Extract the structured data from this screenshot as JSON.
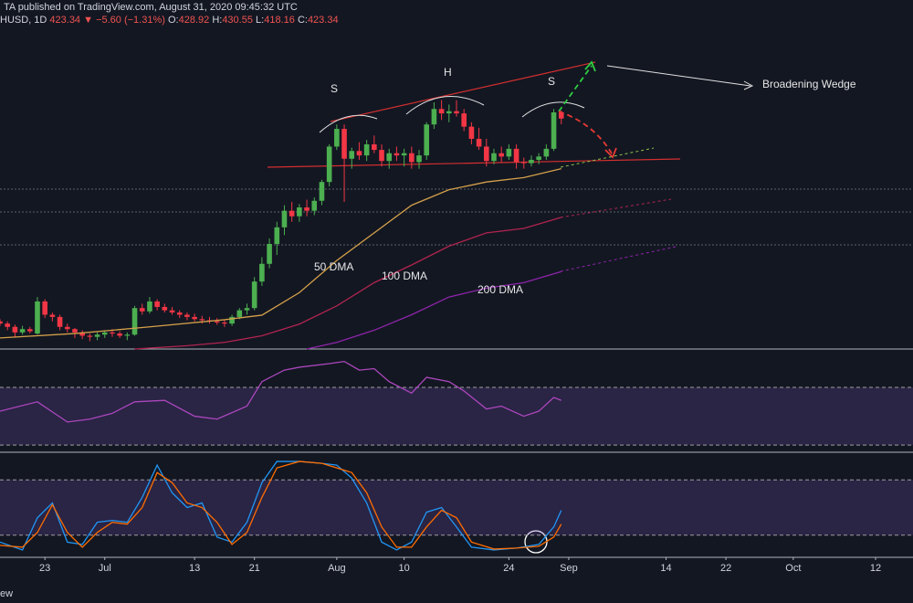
{
  "header": {
    "title": "TA published on TradingView.com, August 31, 2020 09:45:32 UTC",
    "symbol": "HUSD, 1D",
    "price": "423.34",
    "change": "▼ −5.60 (−1.31%)",
    "open_label": "O:",
    "open": "428.92",
    "high_label": "H:",
    "high": "430.55",
    "low_label": "L:",
    "low": "418.16",
    "close_label": "C:",
    "close": "423.34"
  },
  "footer": "ew",
  "chart_data": [
    {
      "type": "candlestick",
      "xlim": [
        0,
        122
      ],
      "ylim": [
        215,
        514
      ],
      "up_color": "#4caf50",
      "down_color": "#f23645",
      "x": [
        0,
        1,
        2,
        3,
        4,
        5,
        6,
        7,
        8,
        9,
        10,
        11,
        12,
        13,
        14,
        15,
        16,
        17,
        18,
        19,
        20,
        21,
        22,
        23,
        24,
        25,
        26,
        27,
        28,
        29,
        30,
        31,
        32,
        33,
        34,
        35,
        36,
        37,
        38,
        39,
        40,
        41,
        42,
        43,
        44,
        45,
        46,
        47,
        48,
        49,
        50,
        51,
        52,
        53,
        54,
        55,
        56,
        57,
        58,
        59,
        60,
        61,
        62,
        63,
        64,
        65,
        66,
        67,
        68,
        69,
        70,
        71,
        72,
        73,
        74,
        75
      ],
      "open": [
        240,
        238,
        235,
        230,
        233,
        229,
        258,
        246,
        244,
        235,
        233,
        230,
        227,
        226,
        228,
        230,
        229,
        227,
        228,
        252,
        249,
        258,
        253,
        250,
        248,
        246,
        244,
        242,
        241,
        240,
        239,
        238,
        244,
        250,
        252,
        276,
        292,
        310,
        325,
        340,
        335,
        343,
        340,
        349,
        366,
        398,
        414,
        387,
        394,
        390,
        400,
        395,
        385,
        392,
        390,
        392,
        384,
        390,
        418,
        432,
        428,
        430,
        428,
        416,
        405,
        398,
        385,
        392,
        389,
        396,
        384,
        383,
        386,
        389,
        396,
        428.92
      ],
      "high": [
        242,
        240,
        237,
        236,
        235,
        262,
        260,
        248,
        246,
        238,
        234,
        232,
        229,
        230,
        232,
        233,
        231,
        230,
        254,
        256,
        262,
        260,
        256,
        253,
        250,
        248,
        247,
        245,
        244,
        243,
        241,
        246,
        252,
        256,
        280,
        298,
        315,
        330,
        345,
        348,
        346,
        350,
        352,
        368,
        400,
        418,
        418,
        397,
        402,
        404,
        408,
        400,
        396,
        398,
        396,
        398,
        395,
        420,
        438,
        440,
        436,
        440,
        432,
        420,
        415,
        405,
        396,
        398,
        400,
        400,
        388,
        390,
        392,
        400,
        432,
        430.55
      ],
      "low": [
        236,
        232,
        226,
        228,
        229,
        228,
        243,
        240,
        232,
        230,
        225,
        224,
        222,
        223,
        225,
        226,
        225,
        223,
        227,
        246,
        247,
        250,
        248,
        246,
        243,
        241,
        240,
        238,
        238,
        237,
        235,
        236,
        242,
        246,
        250,
        272,
        288,
        300,
        318,
        330,
        330,
        335,
        336,
        345,
        362,
        395,
        348,
        378,
        386,
        385,
        392,
        380,
        378,
        385,
        380,
        378,
        378,
        386,
        414,
        422,
        420,
        425,
        412,
        400,
        395,
        380,
        382,
        384,
        386,
        378,
        378,
        380,
        382,
        386,
        394,
        418.16
      ],
      "close": [
        238,
        235,
        230,
        233,
        231,
        258,
        246,
        244,
        235,
        233,
        230,
        227,
        226,
        228,
        230,
        229,
        227,
        228,
        252,
        249,
        258,
        253,
        250,
        248,
        246,
        244,
        242,
        241,
        240,
        239,
        238,
        244,
        250,
        252,
        276,
        292,
        310,
        325,
        340,
        335,
        343,
        340,
        349,
        366,
        398,
        414,
        387,
        394,
        390,
        400,
        395,
        385,
        392,
        390,
        392,
        384,
        390,
        418,
        432,
        428,
        430,
        428,
        416,
        405,
        398,
        385,
        392,
        389,
        396,
        384,
        383,
        386,
        389,
        396,
        428.92,
        423.34
      ],
      "series": [
        {
          "name": "50 DMA",
          "color": "#d4a04a",
          "x": [
            0,
            10,
            20,
            30,
            35,
            40,
            45,
            50,
            55,
            60,
            65,
            70,
            75
          ],
          "values": [
            225,
            229,
            235,
            241.5,
            245.6,
            266,
            295,
            320,
            345,
            359,
            366,
            370,
            378
          ]
        },
        {
          "name": "100 DMA",
          "color": "#b0244f",
          "x": [
            18,
            25,
            30,
            35,
            40,
            45,
            50,
            55,
            60,
            65,
            70,
            75
          ],
          "values": [
            215,
            218,
            221,
            227,
            237.5,
            254,
            275,
            291,
            308,
            320,
            324,
            334
          ]
        },
        {
          "name": "200 DMA",
          "color": "#8e24aa",
          "x": [
            41,
            45,
            50,
            55,
            60,
            65,
            70,
            75
          ],
          "values": [
            215,
            221,
            232,
            246,
            262,
            270,
            275,
            285
          ]
        }
      ],
      "annotations": [
        {
          "text": "S"
        },
        {
          "text": "H"
        },
        {
          "text": "S"
        },
        {
          "text": "Broadening Wedge"
        }
      ]
    },
    {
      "type": "line",
      "xlim": [
        0,
        122
      ],
      "ylim": [
        25,
        96
      ],
      "bands": {
        "lower": 30,
        "upper": 70
      },
      "band_color": "#7e57c2",
      "series": [
        {
          "color": "#ab47bc",
          "x": [
            0,
            5,
            9,
            12,
            15,
            18,
            22,
            26,
            29,
            33,
            35,
            38,
            40,
            44,
            46,
            48,
            50,
            52,
            55,
            57,
            60,
            62,
            65,
            67,
            70,
            72,
            74,
            75
          ],
          "values": [
            53.5,
            60,
            46,
            48,
            52,
            60,
            61,
            50,
            48,
            57,
            74,
            82,
            84,
            86.5,
            88,
            82,
            83,
            74,
            66,
            77,
            74,
            67.5,
            55,
            57,
            50,
            53.5,
            63,
            61
          ]
        }
      ]
    },
    {
      "type": "line",
      "xlim": [
        0,
        122
      ],
      "ylim": [
        -4,
        109
      ],
      "bands": {
        "lower": 20,
        "upper": 80
      },
      "band_color": "#7e57c2",
      "x": [
        0,
        3,
        5,
        7,
        9,
        11,
        13,
        15,
        17,
        19,
        21,
        23,
        25,
        27,
        29,
        31,
        33,
        35,
        37,
        40,
        43,
        45,
        47,
        49,
        51,
        53,
        55,
        57,
        59,
        61,
        63,
        66,
        69,
        72,
        74,
        75
      ],
      "series": [
        {
          "color": "#2196f3",
          "values": [
            12.5,
            4,
            39,
            55,
            12.5,
            10,
            34,
            36,
            34,
            61,
            96,
            66,
            50,
            55,
            18,
            12.5,
            34,
            77,
            100,
            100,
            98,
            96,
            82,
            55,
            12.5,
            4,
            12.5,
            45,
            50,
            29,
            7,
            4,
            6,
            10,
            29,
            47
          ]
        },
        {
          "color": "#ff6d00",
          "values": [
            9,
            7,
            23,
            53,
            23,
            7,
            23,
            34,
            32,
            50,
            88,
            77,
            55,
            50,
            34,
            10,
            23,
            61,
            93,
            100,
            98,
            93,
            88,
            66,
            29,
            7,
            7,
            29,
            47,
            39,
            12.5,
            5,
            6,
            8,
            18,
            32
          ]
        }
      ],
      "xticks": [
        {
          "value": 6,
          "label": "23"
        },
        {
          "value": 14,
          "label": "Jul"
        },
        {
          "value": 26,
          "label": "13"
        },
        {
          "value": 34,
          "label": "21"
        },
        {
          "value": 45,
          "label": "Aug"
        },
        {
          "value": 54,
          "label": "10"
        },
        {
          "value": 68,
          "label": "24"
        },
        {
          "value": 76,
          "label": "Sep"
        },
        {
          "value": 89,
          "label": "14"
        },
        {
          "value": 97,
          "label": "22"
        },
        {
          "value": 106,
          "label": "Oct"
        },
        {
          "value": 117,
          "label": "12"
        }
      ]
    }
  ]
}
